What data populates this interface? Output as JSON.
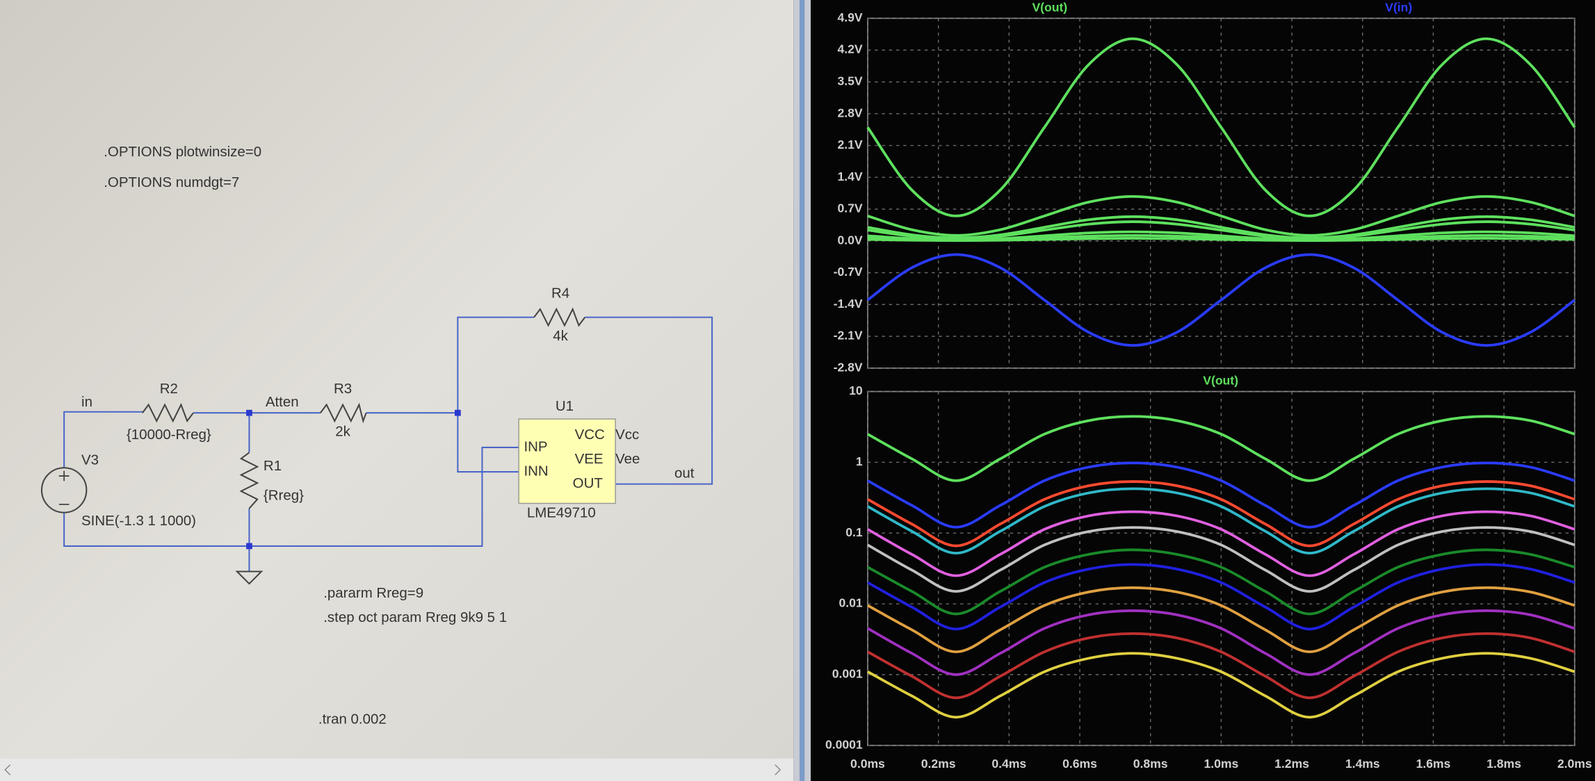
{
  "schematic": {
    "directives": [
      ".OPTIONS plotwinsize=0",
      ".OPTIONS numdgt=7",
      ".pararm Rreg=9",
      ".step oct param Rreg 9k9 5 1",
      ".tran 0.002"
    ],
    "nets": [
      "in",
      "Atten",
      "out"
    ],
    "components": [
      {
        "name": "R4",
        "value": "4k"
      },
      {
        "name": "R2",
        "value": "{10000-Rreg}"
      },
      {
        "name": "R3",
        "value": "2k"
      },
      {
        "name": "R1",
        "value": "{Rreg}"
      },
      {
        "name": "V3",
        "value": "SINE(-1.3 1 1000)"
      },
      {
        "name": "U1",
        "value": "LME49710",
        "pins": [
          "INP",
          "INN",
          "VCC",
          "VEE",
          "OUT"
        ],
        "pin_nets": [
          "Vcc",
          "Vee"
        ]
      }
    ]
  },
  "chart_data": [
    {
      "type": "line",
      "grid": true,
      "x": [
        0,
        0.000125,
        0.00025,
        0.000375,
        0.0005,
        0.000625,
        0.00075,
        0.000875,
        0.001,
        0.001125,
        0.00125,
        0.001375,
        0.0015,
        0.001625,
        0.00175,
        0.001875,
        0.002
      ],
      "xlim": [
        0,
        0.002
      ],
      "ylim": [
        -2.8,
        4.9
      ],
      "yticks": [
        {
          "value": 4.9,
          "label": "4.9V"
        },
        {
          "value": 4.2,
          "label": "4.2V"
        },
        {
          "value": 3.5,
          "label": "3.5V"
        },
        {
          "value": 2.8,
          "label": "2.8V"
        },
        {
          "value": 2.1,
          "label": "2.1V"
        },
        {
          "value": 1.4,
          "label": "1.4V"
        },
        {
          "value": 0.7,
          "label": "0.7V"
        },
        {
          "value": 0,
          "label": "0.0V"
        },
        {
          "value": -0.7,
          "label": "-0.7V"
        },
        {
          "value": -1.4,
          "label": "-1.4V"
        },
        {
          "value": -2.1,
          "label": "-2.1V"
        },
        {
          "value": -2.8,
          "label": "-2.8V"
        }
      ],
      "series": [
        {
          "name": "V(out)",
          "color": "#5ee05e",
          "values": [
            2.5,
            1.12,
            0.55,
            1.12,
            2.5,
            3.88,
            4.45,
            3.88,
            2.5,
            1.12,
            0.55,
            1.12,
            2.5,
            3.88,
            4.45,
            3.88,
            2.5
          ]
        },
        {
          "name": "V(in)",
          "color": "#2a3cff",
          "values": [
            -1.3,
            -0.59,
            -0.3,
            -0.59,
            -1.3,
            -2.01,
            -2.3,
            -2.01,
            -1.3,
            -0.59,
            -0.3,
            -0.59,
            -1.3,
            -2.01,
            -2.3,
            -2.01,
            -1.3
          ]
        },
        {
          "color": "#5ee05e",
          "values": [
            0.55,
            0.246,
            0.121,
            0.246,
            0.55,
            0.854,
            0.979,
            0.854,
            0.55,
            0.246,
            0.121,
            0.246,
            0.55,
            0.854,
            0.979,
            0.854,
            0.55
          ]
        },
        {
          "color": "#5ee05e",
          "values": [
            0.3,
            0.134,
            0.066,
            0.134,
            0.3,
            0.466,
            0.534,
            0.466,
            0.3,
            0.134,
            0.066,
            0.134,
            0.3,
            0.466,
            0.534,
            0.466,
            0.3
          ]
        },
        {
          "color": "#5ee05e",
          "values": [
            0.238,
            0.106,
            0.052,
            0.106,
            0.238,
            0.369,
            0.423,
            0.369,
            0.238,
            0.106,
            0.052,
            0.106,
            0.238,
            0.369,
            0.423,
            0.369,
            0.238
          ]
        },
        {
          "color": "#5ee05e",
          "values": [
            0.113,
            0.05,
            0.025,
            0.05,
            0.113,
            0.175,
            0.2,
            0.175,
            0.113,
            0.05,
            0.025,
            0.05,
            0.113,
            0.175,
            0.2,
            0.175,
            0.113
          ]
        },
        {
          "color": "#5ee05e",
          "values": [
            0.068,
            0.03,
            0.015,
            0.03,
            0.068,
            0.105,
            0.12,
            0.105,
            0.068,
            0.03,
            0.015,
            0.03,
            0.068,
            0.105,
            0.12,
            0.105,
            0.068
          ]
        },
        {
          "color": "#5ee05e",
          "values": [
            0.033,
            0.015,
            0.0072,
            0.015,
            0.033,
            0.05,
            0.058,
            0.05,
            0.033,
            0.015,
            0.0072,
            0.015,
            0.033,
            0.05,
            0.058,
            0.05,
            0.033
          ]
        }
      ]
    },
    {
      "type": "line",
      "grid": true,
      "yscale": "log",
      "x": [
        0,
        0.000125,
        0.00025,
        0.000375,
        0.0005,
        0.000625,
        0.00075,
        0.000875,
        0.001,
        0.001125,
        0.00125,
        0.001375,
        0.0015,
        0.001625,
        0.00175,
        0.001875,
        0.002
      ],
      "xlim": [
        0,
        0.002
      ],
      "xticks": [
        {
          "value": 0,
          "label": "0.0ms"
        },
        {
          "value": 0.0002,
          "label": "0.2ms"
        },
        {
          "value": 0.0004,
          "label": "0.4ms"
        },
        {
          "value": 0.0006,
          "label": "0.6ms"
        },
        {
          "value": 0.0008,
          "label": "0.8ms"
        },
        {
          "value": 0.001,
          "label": "1.0ms"
        },
        {
          "value": 0.0012,
          "label": "1.2ms"
        },
        {
          "value": 0.0014,
          "label": "1.4ms"
        },
        {
          "value": 0.0016,
          "label": "1.6ms"
        },
        {
          "value": 0.0018,
          "label": "1.8ms"
        },
        {
          "value": 0.002,
          "label": "2.0ms"
        }
      ],
      "ylim": [
        0.0001,
        10
      ],
      "yticks": [
        10,
        1,
        0.1,
        0.01,
        0.001,
        0.0001
      ],
      "series": [
        {
          "name": "V(out)",
          "color": "#5ee05e",
          "values": [
            2.5,
            1.12,
            0.55,
            1.12,
            2.5,
            3.88,
            4.45,
            3.88,
            2.5,
            1.12,
            0.55,
            1.12,
            2.5,
            3.88,
            4.45,
            3.88,
            2.5
          ]
        },
        {
          "color": "#2a3cff",
          "values": [
            0.55,
            0.246,
            0.121,
            0.246,
            0.55,
            0.854,
            0.979,
            0.854,
            0.55,
            0.246,
            0.121,
            0.246,
            0.55,
            0.854,
            0.979,
            0.854,
            0.55
          ]
        },
        {
          "color": "#ff4a30",
          "values": [
            0.3,
            0.134,
            0.066,
            0.134,
            0.3,
            0.466,
            0.534,
            0.466,
            0.3,
            0.134,
            0.066,
            0.134,
            0.3,
            0.466,
            0.534,
            0.466,
            0.3
          ]
        },
        {
          "color": "#30b8c8",
          "values": [
            0.238,
            0.106,
            0.052,
            0.106,
            0.238,
            0.369,
            0.423,
            0.369,
            0.238,
            0.106,
            0.052,
            0.106,
            0.238,
            0.369,
            0.423,
            0.369,
            0.238
          ]
        },
        {
          "color": "#e060e0",
          "values": [
            0.113,
            0.05,
            0.025,
            0.05,
            0.113,
            0.175,
            0.2,
            0.175,
            0.113,
            0.05,
            0.025,
            0.05,
            0.113,
            0.175,
            0.2,
            0.175,
            0.113
          ]
        },
        {
          "color": "#c0c0c0",
          "values": [
            0.068,
            0.03,
            0.015,
            0.03,
            0.068,
            0.105,
            0.12,
            0.105,
            0.068,
            0.03,
            0.015,
            0.03,
            0.068,
            0.105,
            0.12,
            0.105,
            0.068
          ]
        },
        {
          "color": "#1a8a2a",
          "values": [
            0.033,
            0.015,
            0.0072,
            0.015,
            0.033,
            0.05,
            0.058,
            0.05,
            0.033,
            0.015,
            0.0072,
            0.015,
            0.033,
            0.05,
            0.058,
            0.05,
            0.033
          ]
        },
        {
          "color": "#2020e0",
          "values": [
            0.02,
            0.009,
            0.0044,
            0.009,
            0.02,
            0.031,
            0.036,
            0.031,
            0.02,
            0.009,
            0.0044,
            0.009,
            0.02,
            0.031,
            0.036,
            0.031,
            0.02
          ]
        },
        {
          "color": "#e0a040",
          "values": [
            0.0095,
            0.0043,
            0.0021,
            0.0043,
            0.0095,
            0.0147,
            0.0169,
            0.0147,
            0.0095,
            0.0043,
            0.0021,
            0.0043,
            0.0095,
            0.0147,
            0.0169,
            0.0147,
            0.0095
          ]
        },
        {
          "color": "#a030c0",
          "values": [
            0.0045,
            0.002,
            0.001,
            0.002,
            0.0045,
            0.007,
            0.008,
            0.007,
            0.0045,
            0.002,
            0.001,
            0.002,
            0.0045,
            0.007,
            0.008,
            0.007,
            0.0045
          ]
        },
        {
          "color": "#c03030",
          "values": [
            0.0021,
            0.00095,
            0.00047,
            0.00095,
            0.0021,
            0.0033,
            0.0038,
            0.0033,
            0.0021,
            0.00095,
            0.00047,
            0.00095,
            0.0021,
            0.0033,
            0.0038,
            0.0033,
            0.0021
          ]
        },
        {
          "color": "#e0d040",
          "values": [
            0.0011,
            0.0005,
            0.00025,
            0.0005,
            0.0011,
            0.0017,
            0.002,
            0.0017,
            0.0011,
            0.0005,
            0.00025,
            0.0005,
            0.0011,
            0.0017,
            0.002,
            0.0017,
            0.0011
          ]
        }
      ]
    }
  ]
}
